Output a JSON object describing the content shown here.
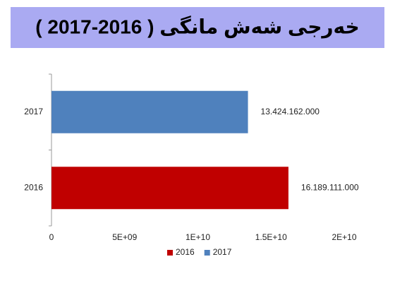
{
  "chart_data": {
    "type": "bar",
    "orientation": "horizontal",
    "title": "خەرجی شەش مانگی ( 2016-2017 )",
    "categories": [
      "2017",
      "2016"
    ],
    "series": [
      {
        "name": "2016",
        "color": "#c00000",
        "values": [
          null,
          16189111000
        ],
        "value_labels": [
          null,
          "16.189.111.000"
        ]
      },
      {
        "name": "2017",
        "color": "#4f81bd",
        "values": [
          13424162000,
          null
        ],
        "value_labels": [
          "13.424.162.000",
          null
        ]
      }
    ],
    "xlim": [
      0,
      20000000000
    ],
    "xticks": [
      0,
      {
        "value": 5000000000,
        "label": "5E+09"
      },
      {
        "value": 10000000000,
        "label": "1E+10"
      },
      {
        "value": 15000000000,
        "label": "1.5E+10"
      },
      {
        "value": 20000000000,
        "label": "2E+10"
      }
    ],
    "grid": false,
    "legend": "bottom"
  }
}
